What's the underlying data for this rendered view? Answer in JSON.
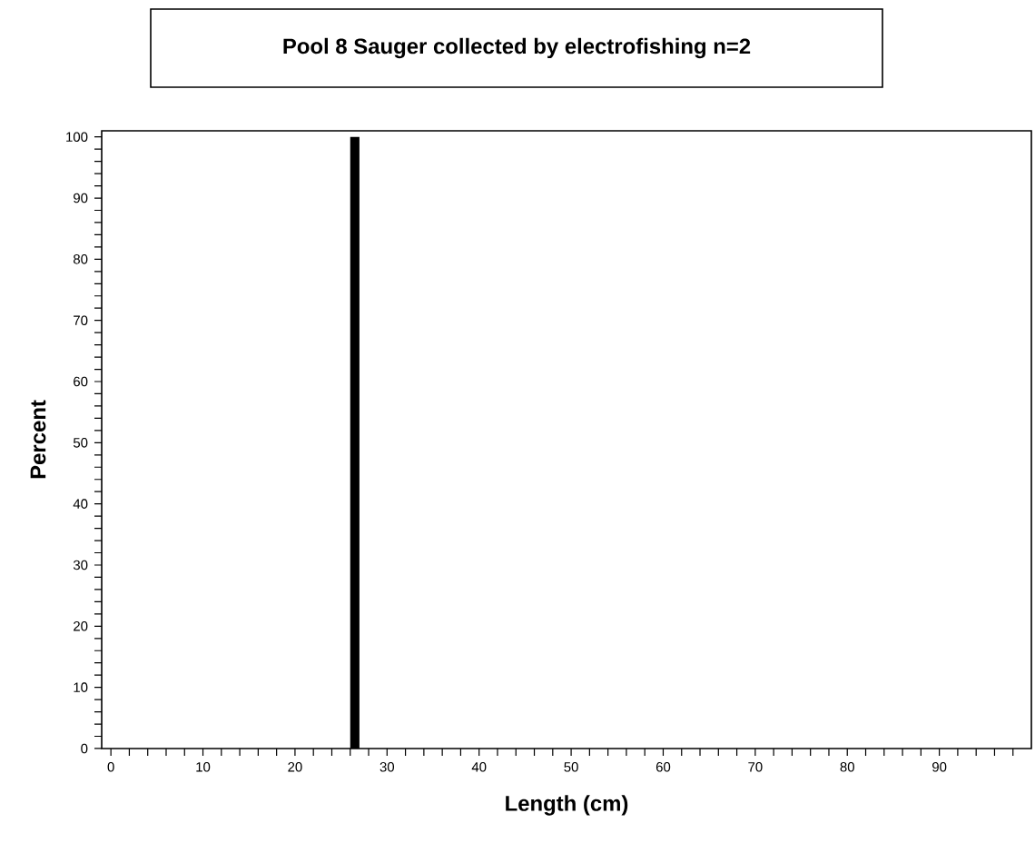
{
  "chart_data": {
    "type": "histogram",
    "title": "Pool 8 Sauger collected by electrofishing   n=2",
    "xlabel": "Length (cm)",
    "ylabel": "Percent",
    "bins": [
      26,
      27
    ],
    "values": [
      100
    ],
    "color": "#000000",
    "xlim": [
      -1,
      100
    ],
    "ylim": [
      0,
      101
    ],
    "xticks": [
      0,
      {
        "value": 2,
        "label": null
      },
      {
        "value": 4,
        "label": null
      },
      {
        "value": 6,
        "label": null
      },
      {
        "value": 8,
        "label": null
      },
      10,
      {
        "value": 12,
        "label": null
      },
      {
        "value": 14,
        "label": null
      },
      {
        "value": 16,
        "label": null
      },
      {
        "value": 18,
        "label": null
      },
      20,
      {
        "value": 22,
        "label": null
      },
      {
        "value": 24,
        "label": null
      },
      {
        "value": 26,
        "label": null
      },
      {
        "value": 28,
        "label": null
      },
      30,
      {
        "value": 32,
        "label": null
      },
      {
        "value": 34,
        "label": null
      },
      {
        "value": 36,
        "label": null
      },
      {
        "value": 38,
        "label": null
      },
      40,
      {
        "value": 42,
        "label": null
      },
      {
        "value": 44,
        "label": null
      },
      {
        "value": 46,
        "label": null
      },
      {
        "value": 48,
        "label": null
      },
      50,
      {
        "value": 52,
        "label": null
      },
      {
        "value": 54,
        "label": null
      },
      {
        "value": 56,
        "label": null
      },
      {
        "value": 58,
        "label": null
      },
      60,
      {
        "value": 62,
        "label": null
      },
      {
        "value": 64,
        "label": null
      },
      {
        "value": 66,
        "label": null
      },
      {
        "value": 68,
        "label": null
      },
      70,
      {
        "value": 72,
        "label": null
      },
      {
        "value": 74,
        "label": null
      },
      {
        "value": 76,
        "label": null
      },
      {
        "value": 78,
        "label": null
      },
      80,
      {
        "value": 82,
        "label": null
      },
      {
        "value": 84,
        "label": null
      },
      {
        "value": 86,
        "label": null
      },
      {
        "value": 88,
        "label": null
      },
      90,
      {
        "value": 92,
        "label": null
      },
      {
        "value": 94,
        "label": null
      },
      {
        "value": 96,
        "label": null
      },
      {
        "value": 98,
        "label": null
      }
    ],
    "yticks": [
      0,
      {
        "value": 2,
        "label": null
      },
      {
        "value": 4,
        "label": null
      },
      {
        "value": 6,
        "label": null
      },
      {
        "value": 8,
        "label": null
      },
      10,
      {
        "value": 12,
        "label": null
      },
      {
        "value": 14,
        "label": null
      },
      {
        "value": 16,
        "label": null
      },
      {
        "value": 18,
        "label": null
      },
      20,
      {
        "value": 22,
        "label": null
      },
      {
        "value": 24,
        "label": null
      },
      {
        "value": 26,
        "label": null
      },
      {
        "value": 28,
        "label": null
      },
      30,
      {
        "value": 32,
        "label": null
      },
      {
        "value": 34,
        "label": null
      },
      {
        "value": 36,
        "label": null
      },
      {
        "value": 38,
        "label": null
      },
      40,
      {
        "value": 42,
        "label": null
      },
      {
        "value": 44,
        "label": null
      },
      {
        "value": 46,
        "label": null
      },
      {
        "value": 48,
        "label": null
      },
      50,
      {
        "value": 52,
        "label": null
      },
      {
        "value": 54,
        "label": null
      },
      {
        "value": 56,
        "label": null
      },
      {
        "value": 58,
        "label": null
      },
      60,
      {
        "value": 62,
        "label": null
      },
      {
        "value": 64,
        "label": null
      },
      {
        "value": 66,
        "label": null
      },
      {
        "value": 68,
        "label": null
      },
      70,
      {
        "value": 72,
        "label": null
      },
      {
        "value": 74,
        "label": null
      },
      {
        "value": 76,
        "label": null
      },
      {
        "value": 78,
        "label": null
      },
      80,
      {
        "value": 82,
        "label": null
      },
      {
        "value": 84,
        "label": null
      },
      {
        "value": 86,
        "label": null
      },
      {
        "value": 88,
        "label": null
      },
      90,
      {
        "value": 92,
        "label": null
      },
      {
        "value": 94,
        "label": null
      },
      {
        "value": 96,
        "label": null
      },
      {
        "value": 98,
        "label": null
      },
      100
    ],
    "grid": false
  }
}
